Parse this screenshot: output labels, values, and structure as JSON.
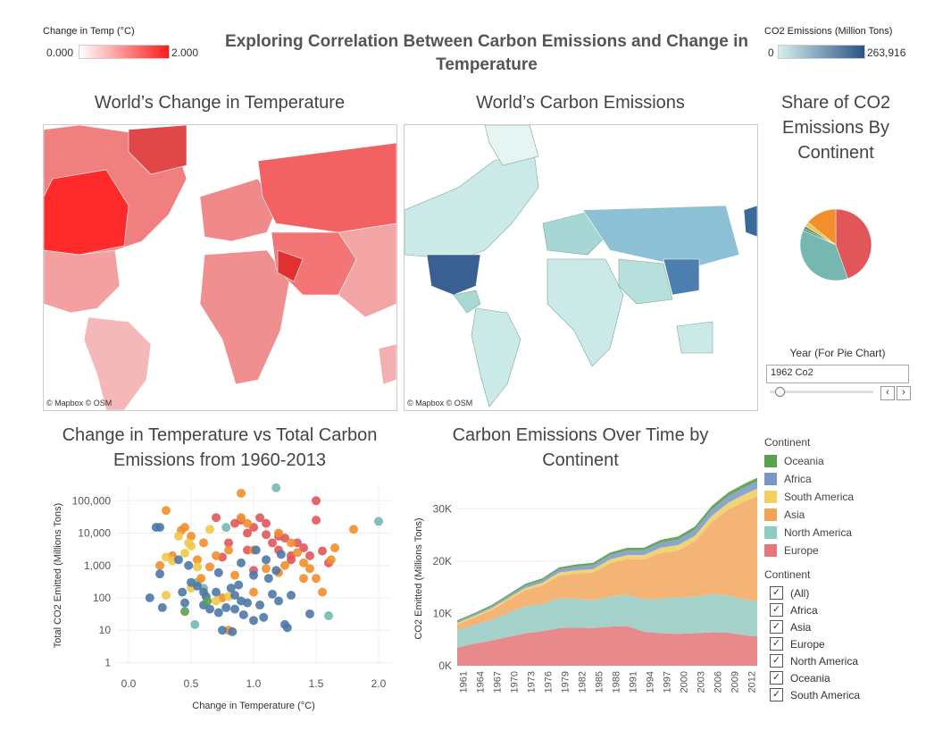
{
  "dashboard": {
    "title": "Exploring Correlation Between Carbon Emissions and Change in Temperature"
  },
  "temp_legend": {
    "title": "Change in Temp (°C)",
    "min": "0.000",
    "max": "2.000",
    "color_low": "#ffffff",
    "color_high": "#ff1a1a"
  },
  "co2_legend": {
    "title": "CO2 Emissions (Million Tons)",
    "min": "0",
    "max": "263,916",
    "color_low": "#d4efed",
    "color_high": "#2a5386"
  },
  "temp_map": {
    "title": "World’s Change in Temperature",
    "credit": "© Mapbox © OSM"
  },
  "co2_map": {
    "title": "World’s Carbon Emissions",
    "credit": "© Mapbox © OSM"
  },
  "pie": {
    "title_lines": [
      "Share of CO2",
      "Emissions By",
      "Continent"
    ]
  },
  "year_filter": {
    "label": "Year (For Pie Chart)",
    "value": "1962 Co2",
    "prev_icon": "chevron-left-icon",
    "next_icon": "chevron-right-icon"
  },
  "scatter": {
    "title_lines": [
      "Change in Temperature vs Total Carbon",
      "Emissions from 1960-2013"
    ]
  },
  "area": {
    "title_lines": [
      "Carbon Emissions Over Time by",
      "Continent"
    ]
  },
  "continent_legend": {
    "title": "Continent",
    "items": [
      {
        "label": "Oceania",
        "color": "#59a14f"
      },
      {
        "label": "Africa",
        "color": "#7797c4"
      },
      {
        "label": "South America",
        "color": "#f2d05f"
      },
      {
        "label": "Asia",
        "color": "#f3a353"
      },
      {
        "label": "North America",
        "color": "#8ecbc3"
      },
      {
        "label": "Europe",
        "color": "#e8767a"
      }
    ]
  },
  "continent_filter": {
    "title": "Continent",
    "items": [
      {
        "label": "(All)",
        "checked": true
      },
      {
        "label": "Africa",
        "checked": true
      },
      {
        "label": "Asia",
        "checked": true
      },
      {
        "label": "Europe",
        "checked": true
      },
      {
        "label": "North America",
        "checked": true
      },
      {
        "label": "Oceania",
        "checked": true
      },
      {
        "label": "South America",
        "checked": true
      }
    ]
  },
  "chart_data": [
    {
      "type": "pie",
      "series": [
        {
          "name": "Europe",
          "value": 41,
          "color": "#e15759"
        },
        {
          "name": "North America",
          "value": 34,
          "color": "#76b7b2"
        },
        {
          "name": "Oceania",
          "value": 1,
          "color": "#59a14f"
        },
        {
          "name": "Africa",
          "value": 1,
          "color": "#4e79a7"
        },
        {
          "name": "South America",
          "value": 2,
          "color": "#edc948"
        },
        {
          "name": "Asia",
          "value": 13,
          "color": "#f28e2b"
        }
      ]
    },
    {
      "type": "scatter",
      "xlabel": "Change in Temperature (°C)",
      "ylabel": "Total CO2 Emitted (Millions Tons)",
      "xlim": [
        -0.1,
        2.1
      ],
      "ylim": [
        0.8,
        300000
      ],
      "log_y": true,
      "x_ticks": [
        "0.0",
        "0.5",
        "1.0",
        "1.5",
        "2.0"
      ],
      "y_ticks": [
        "1",
        "10",
        "100",
        "1,000",
        "10,000",
        "100,000"
      ],
      "series": [
        {
          "name": "Europe",
          "color": "#e15759",
          "points": [
            [
              0.7,
              30000
            ],
            [
              0.85,
              20000
            ],
            [
              0.9,
              25000
            ],
            [
              1.0,
              15000
            ],
            [
              1.05,
              30000
            ],
            [
              1.1,
              20000
            ],
            [
              1.15,
              5000
            ],
            [
              1.2,
              3000
            ],
            [
              1.25,
              7000
            ],
            [
              1.3,
              2000
            ],
            [
              1.35,
              5000
            ],
            [
              1.4,
              3500
            ],
            [
              1.5,
              100000
            ],
            [
              1.5,
              25000
            ],
            [
              1.45,
              2000
            ],
            [
              1.55,
              2800
            ],
            [
              1.6,
              1200
            ],
            [
              0.8,
              5000
            ],
            [
              0.95,
              3000
            ],
            [
              1.1,
              9000
            ],
            [
              1.2,
              8000
            ],
            [
              1.3,
              1500
            ],
            [
              1.0,
              700
            ],
            [
              0.75,
              1800
            ],
            [
              0.95,
              10000
            ]
          ]
        },
        {
          "name": "North America",
          "color": "#76b7b2",
          "points": [
            [
              1.18,
              250000
            ],
            [
              2.0,
              23000
            ],
            [
              1.6,
              28
            ],
            [
              0.53,
              15
            ],
            [
              0.55,
              300
            ],
            [
              0.78,
              15000
            ],
            [
              0.6,
              200
            ]
          ]
        },
        {
          "name": "Asia",
          "color": "#f28e2b",
          "points": [
            [
              0.3,
              50000
            ],
            [
              0.45,
              15000
            ],
            [
              0.5,
              8000
            ],
            [
              0.6,
              5000
            ],
            [
              0.7,
              2000
            ],
            [
              0.8,
              3000
            ],
            [
              0.9,
              30000
            ],
            [
              0.9,
              170000
            ],
            [
              0.95,
              20000
            ],
            [
              1.0,
              3000
            ],
            [
              1.1,
              800
            ],
            [
              1.2,
              10000
            ],
            [
              1.25,
              1000
            ],
            [
              1.3,
              5000
            ],
            [
              1.35,
              2500
            ],
            [
              1.4,
              1200
            ],
            [
              1.45,
              800
            ],
            [
              1.5,
              400
            ],
            [
              1.65,
              3500
            ],
            [
              1.8,
              13000
            ],
            [
              1.55,
              150
            ],
            [
              1.4,
              400
            ],
            [
              1.2,
              600
            ],
            [
              0.85,
              500
            ],
            [
              0.65,
              900
            ],
            [
              0.55,
              1500
            ],
            [
              0.42,
              12000
            ],
            [
              0.58,
              400
            ],
            [
              0.75,
              100
            ],
            [
              0.8,
              10
            ],
            [
              1.0,
              150
            ],
            [
              0.35,
              2000
            ],
            [
              0.25,
              1000
            ],
            [
              1.62,
              1500
            ]
          ]
        },
        {
          "name": "South America",
          "color": "#edc948",
          "points": [
            [
              0.3,
              1800
            ],
            [
              0.35,
              1400
            ],
            [
              0.4,
              8000
            ],
            [
              0.45,
              2400
            ],
            [
              0.5,
              4000
            ],
            [
              0.55,
              900
            ],
            [
              0.65,
              13000
            ],
            [
              0.3,
              120
            ],
            [
              0.7,
              80
            ],
            [
              0.8,
              110
            ],
            [
              0.48,
              5000
            ],
            [
              0.5,
              200
            ]
          ]
        },
        {
          "name": "Africa",
          "color": "#4e79a7",
          "points": [
            [
              0.17,
              100
            ],
            [
              0.22,
              15000
            ],
            [
              0.25,
              550
            ],
            [
              0.27,
              50
            ],
            [
              0.4,
              1500
            ],
            [
              0.43,
              150
            ],
            [
              0.45,
              70
            ],
            [
              0.5,
              300
            ],
            [
              0.55,
              230
            ],
            [
              0.6,
              60
            ],
            [
              0.62,
              110
            ],
            [
              0.65,
              45
            ],
            [
              0.7,
              150
            ],
            [
              0.72,
              35
            ],
            [
              0.75,
              10
            ],
            [
              0.78,
              50
            ],
            [
              0.82,
              200
            ],
            [
              0.83,
              9
            ],
            [
              0.85,
              45
            ],
            [
              0.88,
              250
            ],
            [
              0.9,
              80
            ],
            [
              0.92,
              30
            ],
            [
              0.95,
              70
            ],
            [
              1.0,
              20
            ],
            [
              1.02,
              3000
            ],
            [
              1.05,
              60
            ],
            [
              1.08,
              25
            ],
            [
              1.12,
              400
            ],
            [
              1.15,
              130
            ],
            [
              1.18,
              700
            ],
            [
              1.2,
              80
            ],
            [
              1.25,
              15
            ],
            [
              1.27,
              12
            ],
            [
              1.3,
              120
            ],
            [
              1.45,
              32
            ],
            [
              0.9,
              1200
            ],
            [
              1.0,
              500
            ],
            [
              1.1,
              1500
            ],
            [
              0.25,
              15000
            ],
            [
              0.85,
              120
            ],
            [
              0.72,
              600
            ],
            [
              0.6,
              150
            ],
            [
              1.22,
              2200
            ],
            [
              0.48,
              1000
            ]
          ]
        },
        {
          "name": "Oceania",
          "color": "#59a14f",
          "points": [
            [
              0.45,
              38
            ],
            [
              0.63,
              80
            ]
          ]
        }
      ]
    },
    {
      "type": "area",
      "ylabel": "CO2 Emitted (Millions Tons)",
      "ylim": [
        0,
        35000
      ],
      "y_ticks": [
        {
          "v": 0,
          "label": "0K"
        },
        {
          "v": 10000,
          "label": "10K"
        },
        {
          "v": 20000,
          "label": "20K"
        },
        {
          "v": 30000,
          "label": "30K"
        }
      ],
      "x_ticks": [
        "1961",
        "1964",
        "1967",
        "1970",
        "1973",
        "1976",
        "1979",
        "1982",
        "1985",
        "1988",
        "1991",
        "1994",
        "1997",
        "2000",
        "2003",
        "2006",
        "2009",
        "2012"
      ],
      "years": [
        1960,
        1963,
        1966,
        1969,
        1972,
        1975,
        1978,
        1981,
        1984,
        1987,
        1990,
        1993,
        1996,
        1999,
        2002,
        2005,
        2008,
        2011,
        2013
      ],
      "series": [
        {
          "name": "Europe",
          "color": "#e8898b",
          "values": [
            3500,
            4200,
            4800,
            5500,
            6200,
            6600,
            7200,
            7300,
            7200,
            7500,
            7600,
            6500,
            6200,
            6100,
            6200,
            6400,
            6300,
            5800,
            5600
          ]
        },
        {
          "name": "North America",
          "color": "#a4d1ca",
          "values": [
            3300,
            3600,
            4000,
            4600,
            5200,
            5200,
            5700,
            5500,
            5300,
            5700,
            6000,
            6200,
            6600,
            7000,
            7000,
            7300,
            7100,
            6800,
            6800
          ]
        },
        {
          "name": "Asia",
          "color": "#f4b476",
          "values": [
            1100,
            1400,
            1800,
            2400,
            3000,
            3500,
            4300,
            4800,
            5300,
            6400,
            6800,
            7600,
            8800,
            8900,
            10600,
            13800,
            16500,
            18900,
            20000
          ]
        },
        {
          "name": "South America",
          "color": "#f0d476",
          "values": [
            300,
            320,
            360,
            420,
            480,
            540,
            620,
            640,
            650,
            720,
            760,
            840,
            960,
            1050,
            1050,
            1180,
            1300,
            1380,
            1450
          ]
        },
        {
          "name": "Africa",
          "color": "#8aa6cc",
          "values": [
            250,
            280,
            320,
            370,
            440,
            500,
            600,
            700,
            780,
            830,
            880,
            900,
            960,
            1050,
            1120,
            1220,
            1290,
            1320,
            1350
          ]
        },
        {
          "name": "Oceania",
          "color": "#6aa65f",
          "values": [
            230,
            250,
            280,
            310,
            330,
            350,
            380,
            410,
            440,
            470,
            500,
            510,
            560,
            600,
            640,
            680,
            720,
            720,
            720
          ]
        }
      ]
    }
  ]
}
